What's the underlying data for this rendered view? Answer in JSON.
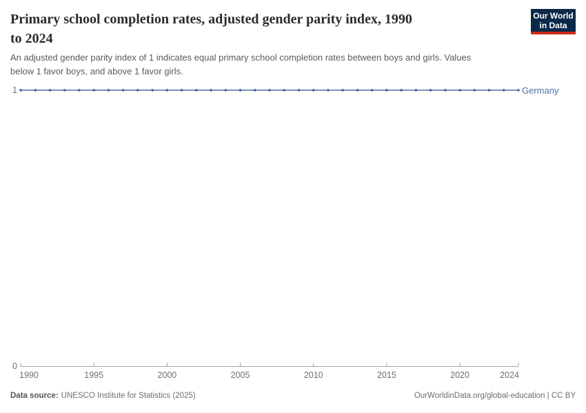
{
  "header": {
    "title": "Primary school completion rates, adjusted gender parity index, 1990 to 2024",
    "title_lines": [
      "Primary school completion rates, adjusted gender parity index, 1990",
      "to 2024"
    ],
    "subtitle_lines": [
      "An adjusted gender parity index of 1 indicates equal primary school completion rates between boys and girls. Values",
      "below 1 favor boys, and above 1 favor girls."
    ],
    "logo": {
      "line1": "Our World",
      "line2": "in Data"
    }
  },
  "chart_data": {
    "type": "line",
    "title": "Primary school completion rates, adjusted gender parity index, 1990 to 2024",
    "x": [
      1990,
      1991,
      1992,
      1993,
      1994,
      1995,
      1996,
      1997,
      1998,
      1999,
      2000,
      2001,
      2002,
      2003,
      2004,
      2005,
      2006,
      2007,
      2008,
      2009,
      2010,
      2011,
      2012,
      2013,
      2014,
      2015,
      2016,
      2017,
      2018,
      2019,
      2020,
      2021,
      2022,
      2023,
      2024
    ],
    "series": [
      {
        "name": "Germany",
        "values": [
          1,
          1,
          1,
          1,
          1,
          1,
          1,
          1,
          1,
          1,
          1,
          1,
          1,
          1,
          1,
          1,
          1,
          1,
          1,
          1,
          1,
          1,
          1,
          1,
          1,
          1,
          1,
          1,
          1,
          1,
          1,
          1,
          1,
          1,
          1
        ]
      }
    ],
    "x_ticks": [
      1990,
      1995,
      2000,
      2005,
      2010,
      2015,
      2020,
      2024
    ],
    "y_ticks": [
      0,
      1
    ],
    "ylim": [
      0,
      1
    ],
    "xlabel": "",
    "ylabel": "",
    "grid": false,
    "legend": "end-of-line-label"
  },
  "colors": {
    "series": "#4c6fa8",
    "marker": "#40609e",
    "axis": "#a1a1a1",
    "tick_label": "#6e6e6e",
    "title": "#2b2b2b",
    "subtitle": "#5b5b5b",
    "logo_bg": "#0b2949",
    "logo_bar": "#cf2a17"
  },
  "footer": {
    "source_label": "Data source:",
    "source_value": "UNESCO Institute for Statistics (2025)",
    "rights": "OurWorldinData.org/global-education | CC BY"
  }
}
